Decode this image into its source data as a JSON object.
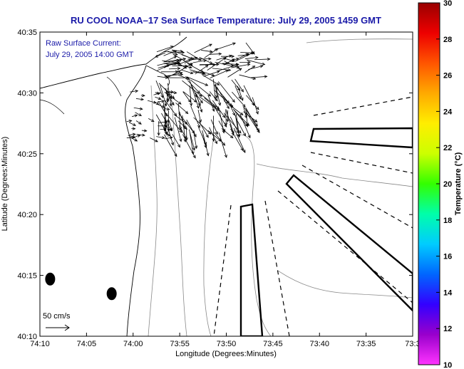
{
  "chart_data": {
    "type": "map",
    "title": "RU COOL  NOAA–17  Sea Surface Temperature:  July 29, 2005 1459 GMT",
    "annotation_line1": "Raw Surface Current:",
    "annotation_line2": "July 29, 2005 14:00 GMT",
    "scale_label": "50 cm/s",
    "xlabel": "Longitude (Degrees:Minutes)",
    "ylabel": "Latitude (Degrees:Minutes)",
    "x_ticks": [
      "74:10",
      "74:05",
      "74:00",
      "73:55",
      "73:50",
      "73:45",
      "73:40",
      "73:35",
      "73:3"
    ],
    "y_ticks": [
      "40:10",
      "40:15",
      "40:20",
      "40:25",
      "40:30",
      "40:35"
    ],
    "xlim_minutes_west": [
      70,
      30
    ],
    "ylim_minutes_north": [
      10,
      35
    ],
    "colorbar": {
      "label": "Temperature (°C)",
      "ticks": [
        "10",
        "12",
        "14",
        "16",
        "18",
        "20",
        "22",
        "24",
        "26",
        "28",
        "30"
      ],
      "range": [
        10,
        30
      ],
      "colors": [
        "#ff33ff",
        "#9900cc",
        "#3300ff",
        "#0066ff",
        "#00ccff",
        "#00ffaa",
        "#33ff00",
        "#ccff00",
        "#ffee00",
        "#ffaa00",
        "#ff5500",
        "#ee0000",
        "#990000"
      ]
    },
    "buoys": [
      {
        "lon_min": 68.9,
        "lat_min": 14.7
      },
      {
        "lon_min": 62.3,
        "lat_min": 13.5
      }
    ],
    "current_vectors": "raw surface current field (many arrows, NE/SE oriented, clustered near 40:27–40:33 N, 73:51–73:58 W)"
  }
}
